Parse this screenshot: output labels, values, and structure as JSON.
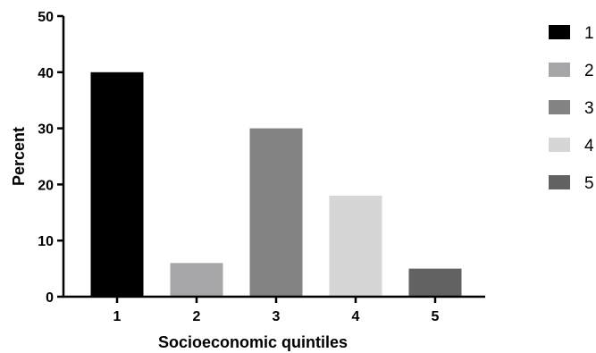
{
  "chart_data": {
    "type": "bar",
    "title": "",
    "xlabel": "Socioeconomic quintiles",
    "ylabel": "Percent",
    "categories": [
      "1",
      "2",
      "3",
      "4",
      "5"
    ],
    "values": [
      40,
      6,
      30,
      18,
      5
    ],
    "colors": [
      "#000000",
      "#a6a6a9",
      "#838383",
      "#d6d6d6",
      "#626262"
    ],
    "ylim": [
      0,
      50
    ],
    "yticks": [
      "0",
      "10",
      "20",
      "30",
      "40",
      "50"
    ],
    "grid": false,
    "legend": {
      "position": "right",
      "entries": [
        "1",
        "2",
        "3",
        "4",
        "5"
      ]
    }
  }
}
